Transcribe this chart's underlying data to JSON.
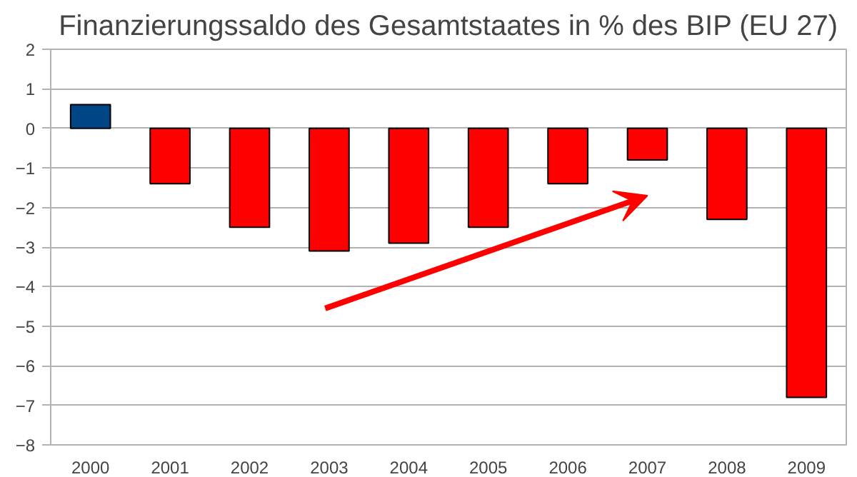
{
  "chart_data": {
    "type": "bar",
    "title": "Finanzierungssaldo des Gesamtstaates in % des BIP (EU 27)",
    "categories": [
      "2000",
      "2001",
      "2002",
      "2003",
      "2004",
      "2005",
      "2006",
      "2007",
      "2008",
      "2009"
    ],
    "values": [
      0.6,
      -1.4,
      -2.5,
      -3.1,
      -2.9,
      -2.5,
      -1.4,
      -0.8,
      -2.3,
      -6.8
    ],
    "colors": [
      "#004586",
      "#ff0000",
      "#ff0000",
      "#ff0000",
      "#ff0000",
      "#ff0000",
      "#ff0000",
      "#ff0000",
      "#ff0000",
      "#ff0000"
    ],
    "ylim": [
      -8,
      2
    ],
    "yticks": [
      -8,
      -7,
      -6,
      -5,
      -4,
      -3,
      -2,
      -1,
      0,
      1,
      2
    ],
    "grid": "y"
  }
}
